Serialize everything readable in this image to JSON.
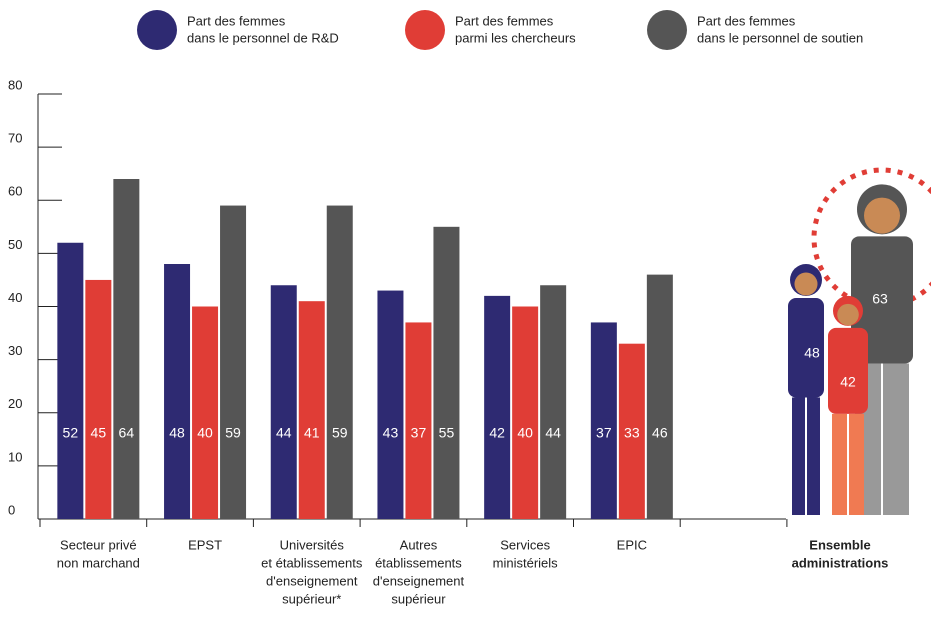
{
  "chart_data": {
    "type": "bar",
    "categories": [
      [
        "Secteur privé",
        "non marchand"
      ],
      [
        "EPST"
      ],
      [
        "Universités",
        "et établissements",
        "d'enseignement",
        "supérieur*"
      ],
      [
        "Autres",
        "établissements",
        "d'enseignement",
        "supérieur"
      ],
      [
        "Services",
        "ministériels"
      ],
      [
        "EPIC"
      ],
      [
        "Ensemble",
        "administrations"
      ]
    ],
    "series": [
      {
        "name": [
          "Part des femmes",
          "dans le personnel de R&D"
        ],
        "color": "#2e2a72",
        "values": [
          52,
          48,
          44,
          43,
          42,
          37,
          48
        ]
      },
      {
        "name": [
          "Part des femmes",
          "parmi les chercheurs"
        ],
        "color": "#e03d36",
        "values": [
          45,
          40,
          41,
          37,
          40,
          33,
          42
        ]
      },
      {
        "name": [
          "Part des femmes",
          "dans le personnel de soutien"
        ],
        "color": "#555555",
        "values": [
          64,
          59,
          59,
          55,
          44,
          46,
          63
        ]
      }
    ],
    "ylim": [
      0,
      80
    ],
    "yticks": [
      0,
      10,
      20,
      30,
      40,
      50,
      60,
      70,
      80
    ]
  }
}
